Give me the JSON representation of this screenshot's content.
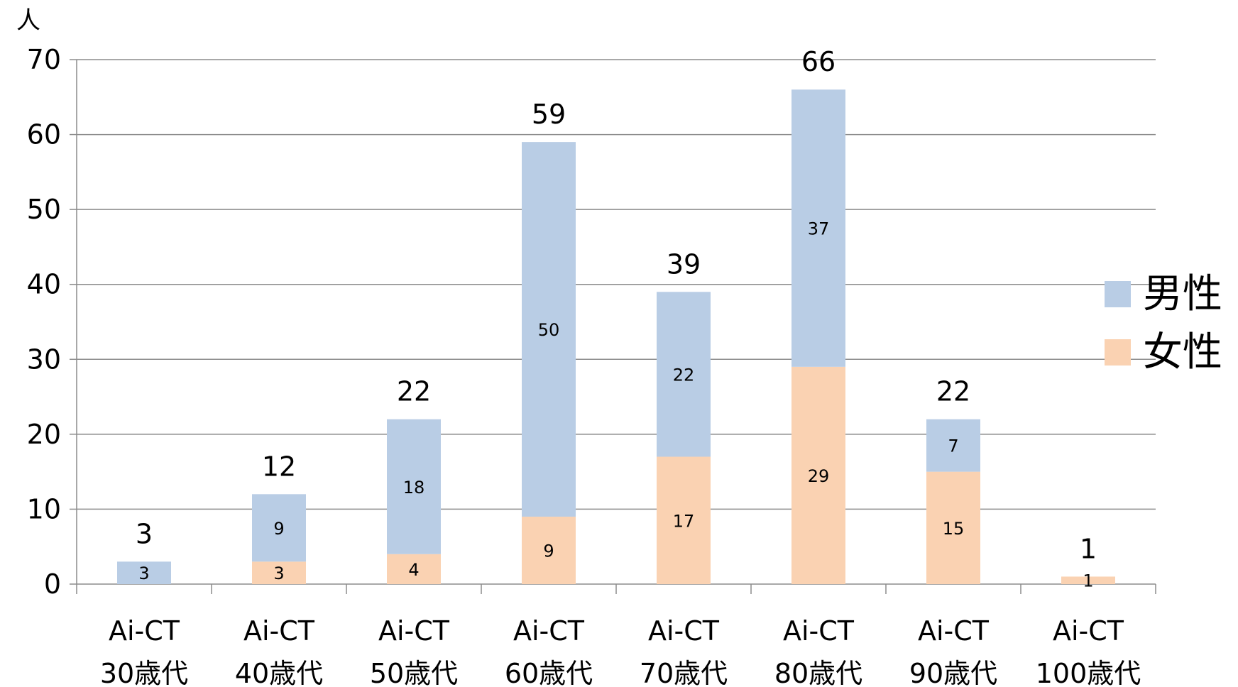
{
  "chart_data": {
    "type": "bar",
    "stacked": true,
    "y_unit_label": "人",
    "ylim": [
      0,
      70
    ],
    "yticks": [
      0,
      10,
      20,
      30,
      40,
      50,
      60,
      70
    ],
    "grid": true,
    "legend_position": "right",
    "categories": [
      [
        "Ai-CT",
        "30歳代"
      ],
      [
        "Ai-CT",
        "40歳代"
      ],
      [
        "Ai-CT",
        "50歳代"
      ],
      [
        "Ai-CT",
        "60歳代"
      ],
      [
        "Ai-CT",
        "70歳代"
      ],
      [
        "Ai-CT",
        "80歳代"
      ],
      [
        "Ai-CT",
        "90歳代"
      ],
      [
        "Ai-CT",
        "100歳代"
      ]
    ],
    "series": [
      {
        "name": "女性",
        "color": "#fad2b2",
        "values": [
          0,
          3,
          4,
          9,
          17,
          29,
          15,
          1
        ],
        "labels": [
          null,
          "3",
          "4",
          "9",
          "17",
          "29",
          "15",
          "1"
        ]
      },
      {
        "name": "男性",
        "color": "#b9cde5",
        "values": [
          3,
          9,
          18,
          50,
          22,
          37,
          7,
          0
        ],
        "labels": [
          "3",
          "9",
          "18",
          "50",
          "22",
          "37",
          "7",
          null
        ]
      }
    ],
    "totals": [
      "3",
      "12",
      "22",
      "59",
      "39",
      "66",
      "22",
      "1"
    ],
    "legend_order": [
      "男性",
      "女性"
    ]
  }
}
